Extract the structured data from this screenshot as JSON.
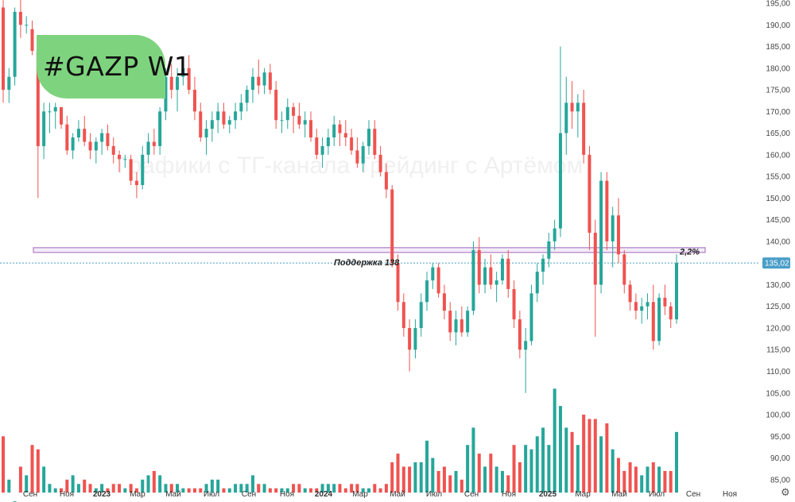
{
  "ticker_label": "#GAZP W1",
  "watermark": "Графики с ТГ-канала Трейдинг с Артёмом",
  "colors": {
    "up": "#26a69a",
    "down": "#ef5350",
    "support": "#b07ec8",
    "price_tag": "#4a9ec8",
    "badge": "#7ed47e"
  },
  "icons": {
    "settings": "gear-icon"
  },
  "chart_data": {
    "type": "candlestick",
    "timeframe": "W1",
    "price_axis": {
      "ticks": [
        85,
        90,
        95,
        100,
        105,
        110,
        115,
        120,
        125,
        130,
        135,
        140,
        145,
        150,
        155,
        160,
        165,
        170,
        175,
        180,
        185,
        190,
        195
      ],
      "ylim": [
        82,
        197
      ]
    },
    "time_axis": [
      "Сен",
      "Ноя",
      "2023",
      "Мар",
      "Май",
      "Июл",
      "Сен",
      "Ноя",
      "2024",
      "Мар",
      "Май",
      "Июл",
      "Сен",
      "Ноя",
      "2025",
      "Мар",
      "Май",
      "Июл",
      "Сен",
      "Ноя"
    ],
    "last_price": "135,02",
    "support": {
      "value": 138,
      "label": "Поддержка 138"
    },
    "annotation": "2,2%",
    "candles": [
      [
        194,
        196,
        172,
        175
      ],
      [
        175,
        180,
        172,
        178
      ],
      [
        178,
        194,
        176,
        193
      ],
      [
        193,
        196,
        187,
        190
      ],
      [
        190,
        192,
        188,
        190
      ],
      [
        189,
        191,
        183,
        184
      ],
      [
        184,
        186,
        150,
        162
      ],
      [
        162,
        172,
        159,
        170
      ],
      [
        170,
        172,
        165,
        170
      ],
      [
        170,
        172,
        166,
        171
      ],
      [
        171,
        171,
        166,
        167
      ],
      [
        167,
        169,
        160,
        161
      ],
      [
        161,
        165,
        159,
        164
      ],
      [
        164,
        168,
        163,
        166
      ],
      [
        166,
        169,
        162,
        163
      ],
      [
        163,
        165,
        159,
        161
      ],
      [
        161,
        164,
        158,
        163
      ],
      [
        163,
        166,
        160,
        165
      ],
      [
        165,
        167,
        161,
        162
      ],
      [
        162,
        164,
        158,
        160
      ],
      [
        160,
        161,
        156,
        159
      ],
      [
        159,
        160,
        157,
        159
      ],
      [
        159,
        160,
        153,
        154
      ],
      [
        154,
        156,
        150,
        153
      ],
      [
        153,
        162,
        152,
        160
      ],
      [
        160,
        165,
        158,
        163
      ],
      [
        163,
        166,
        160,
        162
      ],
      [
        162,
        171,
        160,
        170
      ],
      [
        170,
        180,
        168,
        178
      ],
      [
        178,
        181,
        173,
        175
      ],
      [
        175,
        180,
        170,
        178
      ],
      [
        178,
        182,
        176,
        180
      ],
      [
        180,
        183,
        174,
        175
      ],
      [
        175,
        178,
        168,
        170
      ],
      [
        170,
        172,
        163,
        164
      ],
      [
        164,
        168,
        160,
        166
      ],
      [
        166,
        170,
        163,
        168
      ],
      [
        168,
        172,
        165,
        170
      ],
      [
        170,
        172,
        166,
        167
      ],
      [
        167,
        169,
        165,
        168
      ],
      [
        168,
        172,
        166,
        170
      ],
      [
        170,
        174,
        168,
        172
      ],
      [
        172,
        176,
        170,
        175
      ],
      [
        175,
        180,
        172,
        178
      ],
      [
        178,
        182,
        174,
        176
      ],
      [
        176,
        180,
        174,
        179
      ],
      [
        179,
        181,
        174,
        175
      ],
      [
        175,
        177,
        166,
        168
      ],
      [
        168,
        170,
        165,
        168
      ],
      [
        168,
        173,
        166,
        171
      ],
      [
        171,
        172,
        165,
        169
      ],
      [
        169,
        172,
        166,
        167
      ],
      [
        167,
        170,
        164,
        168
      ],
      [
        168,
        170,
        163,
        164
      ],
      [
        164,
        166,
        159,
        160
      ],
      [
        160,
        164,
        157,
        162
      ],
      [
        162,
        166,
        160,
        164
      ],
      [
        164,
        169,
        162,
        167
      ],
      [
        167,
        168,
        162,
        165
      ],
      [
        165,
        168,
        162,
        164
      ],
      [
        164,
        166,
        160,
        161
      ],
      [
        161,
        164,
        157,
        158
      ],
      [
        158,
        163,
        156,
        162
      ],
      [
        162,
        168,
        160,
        166
      ],
      [
        166,
        168,
        159,
        160
      ],
      [
        160,
        162,
        155,
        156
      ],
      [
        156,
        158,
        150,
        152
      ],
      [
        152,
        153,
        134,
        135
      ],
      [
        135,
        137,
        124,
        126
      ],
      [
        126,
        128,
        118,
        120
      ],
      [
        120,
        122,
        110,
        115
      ],
      [
        115,
        122,
        113,
        120
      ],
      [
        120,
        128,
        118,
        126
      ],
      [
        126,
        133,
        124,
        131
      ],
      [
        131,
        135,
        129,
        134
      ],
      [
        134,
        135,
        127,
        128
      ],
      [
        128,
        130,
        122,
        124
      ],
      [
        124,
        126,
        117,
        119
      ],
      [
        119,
        124,
        116,
        122
      ],
      [
        122,
        125,
        118,
        119
      ],
      [
        119,
        125,
        118,
        124
      ],
      [
        124,
        140,
        123,
        138
      ],
      [
        138,
        141,
        128,
        130
      ],
      [
        130,
        136,
        128,
        134
      ],
      [
        134,
        137,
        129,
        130
      ],
      [
        130,
        133,
        126,
        131
      ],
      [
        131,
        137,
        130,
        136
      ],
      [
        136,
        138,
        127,
        129
      ],
      [
        129,
        131,
        120,
        122
      ],
      [
        122,
        124,
        113,
        115
      ],
      [
        115,
        120,
        105,
        117
      ],
      [
        117,
        130,
        116,
        128
      ],
      [
        128,
        135,
        126,
        133
      ],
      [
        133,
        137,
        130,
        136
      ],
      [
        136,
        142,
        134,
        140
      ],
      [
        140,
        145,
        138,
        143
      ],
      [
        143,
        185,
        141,
        165
      ],
      [
        165,
        178,
        160,
        172
      ],
      [
        172,
        177,
        166,
        170
      ],
      [
        170,
        174,
        164,
        172
      ],
      [
        172,
        175,
        158,
        160
      ],
      [
        160,
        162,
        138,
        142
      ],
      [
        142,
        145,
        118,
        130
      ],
      [
        130,
        156,
        128,
        154
      ],
      [
        154,
        156,
        138,
        140
      ],
      [
        140,
        148,
        134,
        146
      ],
      [
        146,
        150,
        135,
        137
      ],
      [
        137,
        138,
        128,
        130
      ],
      [
        130,
        131,
        124,
        126
      ],
      [
        126,
        128,
        122,
        124
      ],
      [
        124,
        127,
        121,
        125
      ],
      [
        125,
        128,
        122,
        126
      ],
      [
        126,
        130,
        115,
        117
      ],
      [
        117,
        128,
        116,
        127
      ],
      [
        127,
        130,
        123,
        125
      ],
      [
        125,
        126,
        120,
        122
      ],
      [
        122,
        137,
        121,
        135
      ]
    ],
    "volumes": [
      95,
      85,
      80,
      88,
      86,
      93,
      92,
      88,
      84,
      83,
      83,
      85,
      86,
      84,
      85,
      84,
      83,
      84,
      83,
      84,
      84,
      83,
      84,
      83,
      85,
      86,
      87,
      86,
      84,
      84,
      84,
      83,
      83,
      83,
      83,
      84,
      85,
      85,
      83,
      83,
      84,
      84,
      84,
      86,
      84,
      84,
      83,
      83,
      83,
      83,
      84,
      84,
      83,
      83,
      83,
      84,
      84,
      84,
      84,
      83,
      84,
      84,
      83,
      83,
      84,
      83,
      84,
      89,
      91,
      88,
      88,
      89,
      89,
      94,
      90,
      87,
      88,
      86,
      87,
      85,
      93,
      97,
      91,
      88,
      91,
      88,
      87,
      86,
      93,
      89,
      93,
      92,
      95,
      97,
      93,
      106,
      102,
      97,
      96,
      93,
      100,
      99,
      99,
      95,
      98,
      92,
      90,
      87,
      89,
      88,
      86,
      88,
      89,
      88,
      87,
      87,
      96
    ]
  }
}
